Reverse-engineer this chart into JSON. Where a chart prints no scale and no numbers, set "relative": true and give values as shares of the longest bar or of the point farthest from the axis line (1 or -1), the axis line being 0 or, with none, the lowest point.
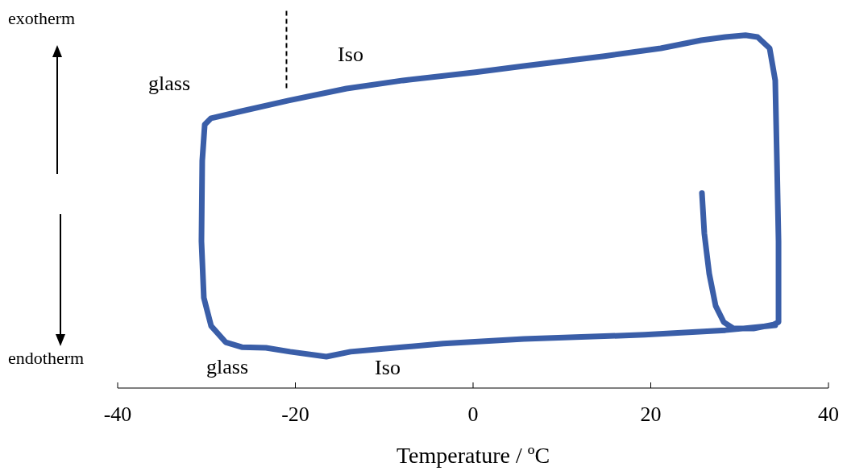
{
  "chart_data": {
    "type": "line",
    "relative": true,
    "xlabel": "Temperature / ºC",
    "xlim": [
      -40,
      40
    ],
    "xticks": [
      -40,
      -20,
      0,
      20,
      40
    ],
    "grid": false,
    "legend": false,
    "marker": "none",
    "line_style": "solid",
    "x": [
      25.76,
      26.03,
      26.58,
      27.3,
      28.21,
      29.3,
      31.56,
      33.83,
      34.38,
      34.38,
      34.2,
      34.01,
      33.38,
      32.02,
      30.66,
      28.39,
      25.67,
      21.13,
      14.78,
      5.71,
      0.27,
      -7.89,
      -14.24,
      -20.77,
      -26.03,
      -29.48,
      -30.2,
      -30.48,
      -30.57,
      -30.3,
      -29.48,
      -27.85,
      -26.03,
      -23.31,
      -20.59,
      -16.51,
      -13.79,
      -10.61,
      -3.36,
      5.71,
      19.32,
      28.39,
      32.47,
      34.01
    ],
    "series": [
      {
        "color": "#3a5ea8",
        "values": [
          0.553,
          0.438,
          0.324,
          0.233,
          0.187,
          0.169,
          0.169,
          0.18,
          0.187,
          0.416,
          0.644,
          0.872,
          0.963,
          0.995,
          1,
          0.995,
          0.986,
          0.963,
          0.941,
          0.913,
          0.895,
          0.872,
          0.849,
          0.815,
          0.785,
          0.765,
          0.747,
          0.644,
          0.416,
          0.256,
          0.176,
          0.13,
          0.116,
          0.114,
          0.103,
          0.089,
          0.103,
          0.11,
          0.126,
          0.139,
          0.151,
          0.164,
          0.174,
          0.178
        ]
      }
    ],
    "ref_lines": [
      {
        "axis": "x",
        "value": -21,
        "color": "#000000",
        "line_style": "dashed"
      }
    ],
    "annotations": [
      "exotherm",
      "endotherm",
      "glass",
      "Iso",
      "glass",
      "Iso"
    ]
  }
}
